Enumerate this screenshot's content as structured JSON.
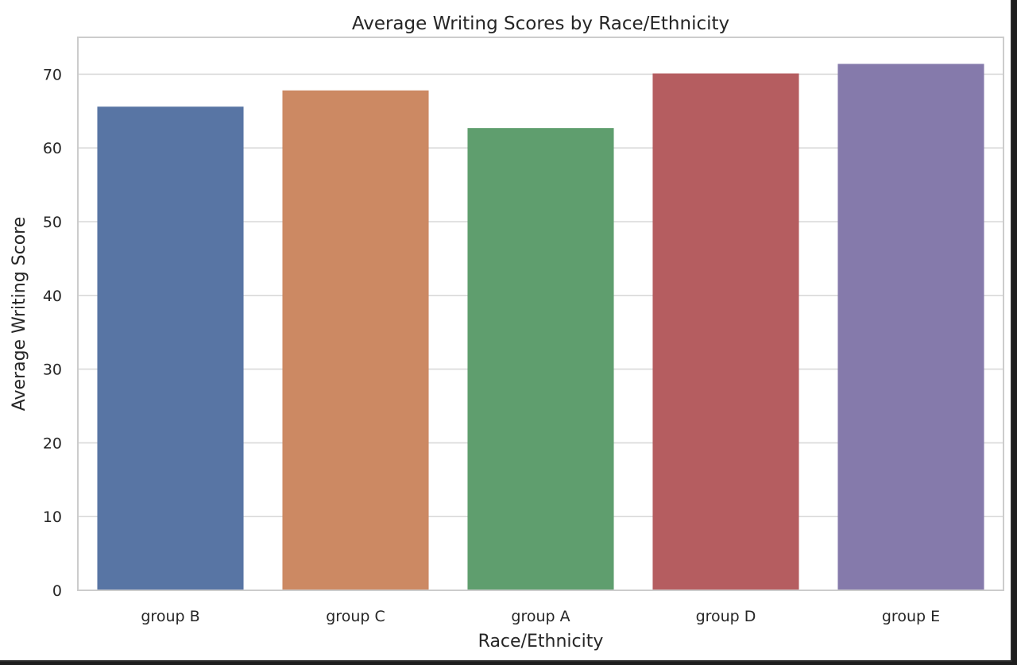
{
  "chart_data": {
    "type": "bar",
    "title": "Average Writing Scores by Race/Ethnicity",
    "xlabel": "Race/Ethnicity",
    "ylabel": "Average Writing Score",
    "categories": [
      "group B",
      "group C",
      "group A",
      "group D",
      "group E"
    ],
    "values": [
      65.6,
      67.8,
      62.7,
      70.1,
      71.4
    ],
    "colors": [
      "#5875a4",
      "#cc8963",
      "#5f9e6e",
      "#b55d60",
      "#857aab"
    ],
    "ylim": [
      0,
      75
    ],
    "yticks": [
      0,
      10,
      20,
      30,
      40,
      50,
      60,
      70
    ],
    "grid": "horizontal",
    "legend": "none"
  }
}
